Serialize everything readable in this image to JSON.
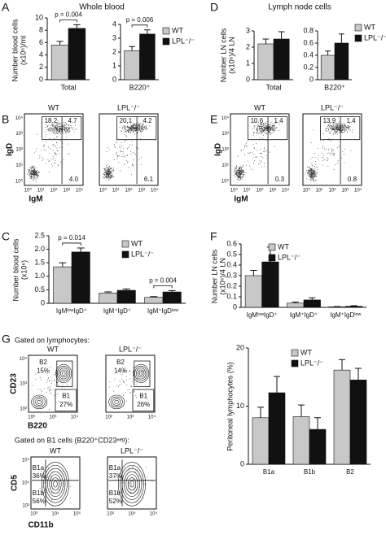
{
  "chart_data": [
    {
      "type": "bar",
      "categories": [
        "Total"
      ],
      "ylim": [
        0,
        10
      ],
      "yticks": [
        0,
        2,
        4,
        6,
        8,
        10
      ],
      "annotations": [
        "p = 0.004"
      ],
      "series": [
        {
          "name": "WT",
          "color": "#c8c8c8",
          "values": [
            5.6
          ],
          "errors": [
            0.6
          ]
        },
        {
          "name": "LPL⁻/⁻",
          "color": "#111111",
          "values": [
            8.3
          ],
          "errors": [
            0.6
          ]
        }
      ]
    },
    {
      "type": "bar",
      "categories": [
        "B220⁺"
      ],
      "ylim": [
        0,
        4
      ],
      "yticks": [
        0,
        1,
        2,
        3,
        4
      ],
      "annotations": [
        "p = 0.006"
      ],
      "series": [
        {
          "name": "WT",
          "color": "#c8c8c8",
          "values": [
            2.1
          ],
          "errors": [
            0.3
          ]
        },
        {
          "name": "LPL⁻/⁻",
          "color": "#111111",
          "values": [
            3.3
          ],
          "errors": [
            0.3
          ]
        }
      ]
    },
    {
      "type": "bar",
      "categories": [
        "Total"
      ],
      "ylim": [
        0,
        3
      ],
      "yticks": [
        0,
        1,
        2,
        3
      ],
      "annotations": [],
      "series": [
        {
          "name": "WT",
          "color": "#c8c8c8",
          "values": [
            2.2
          ],
          "errors": [
            0.3
          ]
        },
        {
          "name": "LPL⁻/⁻",
          "color": "#111111",
          "values": [
            2.5
          ],
          "errors": [
            0.45
          ]
        }
      ]
    },
    {
      "type": "bar",
      "categories": [
        "B220⁺"
      ],
      "ylim": [
        0,
        0.8
      ],
      "yticks": [
        0,
        0.2,
        0.4,
        0.6,
        0.8
      ],
      "annotations": [],
      "series": [
        {
          "name": "WT",
          "color": "#c8c8c8",
          "values": [
            0.4
          ],
          "errors": [
            0.07
          ]
        },
        {
          "name": "LPL⁻/⁻",
          "color": "#111111",
          "values": [
            0.6
          ],
          "errors": [
            0.15
          ]
        }
      ]
    },
    {
      "type": "bar",
      "categories": [
        "IgMˡᵒʷIgD⁺",
        "IgM⁺IgD⁺",
        "IgM⁺IgDˡᵒʷ"
      ],
      "ylim": [
        0,
        2.5
      ],
      "yticks": [
        0,
        0.5,
        {
          "value": 1,
          "label": "1.0"
        },
        1.5,
        {
          "value": 2,
          "label": "2.0"
        },
        2.5
      ],
      "annotations": [
        "p = 0.014",
        "p = 0.004"
      ],
      "series": [
        {
          "name": "WT",
          "color": "#c8c8c8",
          "values": [
            1.35,
            0.38,
            0.22
          ],
          "errors": [
            0.15,
            0.04,
            0.03
          ]
        },
        {
          "name": "LPL⁻/⁻",
          "color": "#111111",
          "values": [
            1.9,
            0.48,
            0.42
          ],
          "errors": [
            0.15,
            0.05,
            0.05
          ]
        }
      ]
    },
    {
      "type": "bar",
      "categories": [
        "IgMˡᵒʷIgD⁺",
        "IgM⁺IgD⁺",
        "IgM⁺IgDˡᵒʷ"
      ],
      "ylim": [
        0,
        0.6
      ],
      "yticks": [
        0,
        0.1,
        0.2,
        0.3,
        0.4,
        0.5,
        0.6
      ],
      "annotations": [],
      "series": [
        {
          "name": "WT",
          "color": "#c8c8c8",
          "values": [
            0.3,
            0.04,
            0.005
          ],
          "errors": [
            0.05,
            0.01,
            0.003
          ]
        },
        {
          "name": "LPL⁻/⁻",
          "color": "#111111",
          "values": [
            0.43,
            0.07,
            0.01
          ],
          "errors": [
            0.14,
            0.02,
            0.005
          ]
        }
      ]
    },
    {
      "type": "bar",
      "categories": [
        "B1a",
        "B1b",
        "B2"
      ],
      "ylim": [
        0,
        20
      ],
      "yticks": [
        0,
        10,
        20
      ],
      "annotations": [],
      "series": [
        {
          "name": "WT",
          "color": "#c8c8c8",
          "values": [
            8,
            8.2,
            16.2
          ],
          "errors": [
            1.8,
            2,
            1.8
          ]
        },
        {
          "name": "LPL⁻/⁻",
          "color": "#111111",
          "values": [
            12.3,
            6,
            14.5
          ],
          "errors": [
            2.8,
            2,
            2
          ]
        }
      ]
    }
  ],
  "panels": {
    "A": {
      "label": "A",
      "title": "Whole blood",
      "ylabel": [
        "Number blood cells",
        "(x10⁶)/ml"
      ]
    },
    "D": {
      "label": "D",
      "title": "Lymph node cells",
      "ylabel": [
        "Number LN cells",
        "(x10⁶)/4 LN"
      ]
    },
    "C": {
      "label": "C",
      "ylabel": [
        "Number blood cells",
        "(x10⁶)"
      ]
    },
    "F": {
      "label": "F",
      "ylabel": [
        "Number LN cells",
        "(x10⁶)/4 LN"
      ]
    },
    "Gbar": {
      "ylabel": "Peritoneal lymphocytes (%)"
    }
  },
  "flow": {
    "B": {
      "label": "B",
      "xlabel": "IgM",
      "ylabel": "IgD",
      "xticks": [
        "10⁰",
        "10¹",
        "10²",
        "10³",
        "10⁴"
      ],
      "yticks": [
        "10⁰",
        "10¹",
        "10²",
        "10³",
        "10⁴"
      ],
      "plots": [
        {
          "title": "WT",
          "gates": [
            "18.2",
            "4.7",
            "4.0"
          ]
        },
        {
          "title": "LPL⁻/⁻",
          "gates": [
            "20.1",
            "4.2",
            "6.1"
          ]
        }
      ]
    },
    "E": {
      "label": "E",
      "xlabel": "IgM",
      "ylabel": "IgD",
      "xticks": [
        "10⁰",
        "10¹",
        "10²",
        "10³",
        "10⁴"
      ],
      "yticks": [
        "10⁰",
        "10¹",
        "10²",
        "10³",
        "10⁴"
      ],
      "plots": [
        {
          "title": "WT",
          "gates": [
            "10.6",
            "1.4",
            "0.3"
          ]
        },
        {
          "title": "LPL⁻/⁻",
          "gates": [
            "13.9",
            "1.4",
            "0.8"
          ]
        }
      ]
    },
    "G": {
      "label": "G",
      "caption": "Gated on lymphocytes:",
      "xlabel": "B220",
      "ylabel": "CD23",
      "xticks": [
        "10²",
        "10³",
        "10⁴"
      ],
      "yticks": [
        "10²",
        "10³",
        "10⁴"
      ],
      "plots": [
        {
          "title": "WT",
          "gates": [
            "B2",
            "15%",
            "B1",
            "27%"
          ]
        },
        {
          "title": "LPL⁻/⁻",
          "gates": [
            "B2",
            "14%",
            "B1",
            "26%"
          ]
        }
      ]
    },
    "G2": {
      "caption": "Gated on B1 cells (B220⁺CD23ⁿᵉᵍ):",
      "xlabel": "CD11b",
      "ylabel": "CD5",
      "xticks": [
        "10³",
        "10⁴",
        "10⁵"
      ],
      "yticks": [
        "10³",
        "10⁴",
        "10⁵"
      ],
      "plots": [
        {
          "title": "WT",
          "gates": [
            "B1a",
            "36%",
            "B1b",
            "56%"
          ]
        },
        {
          "title": "LPL⁻/⁻",
          "gates": [
            "B1a",
            "37%",
            "B1b",
            "52%"
          ]
        }
      ]
    }
  }
}
